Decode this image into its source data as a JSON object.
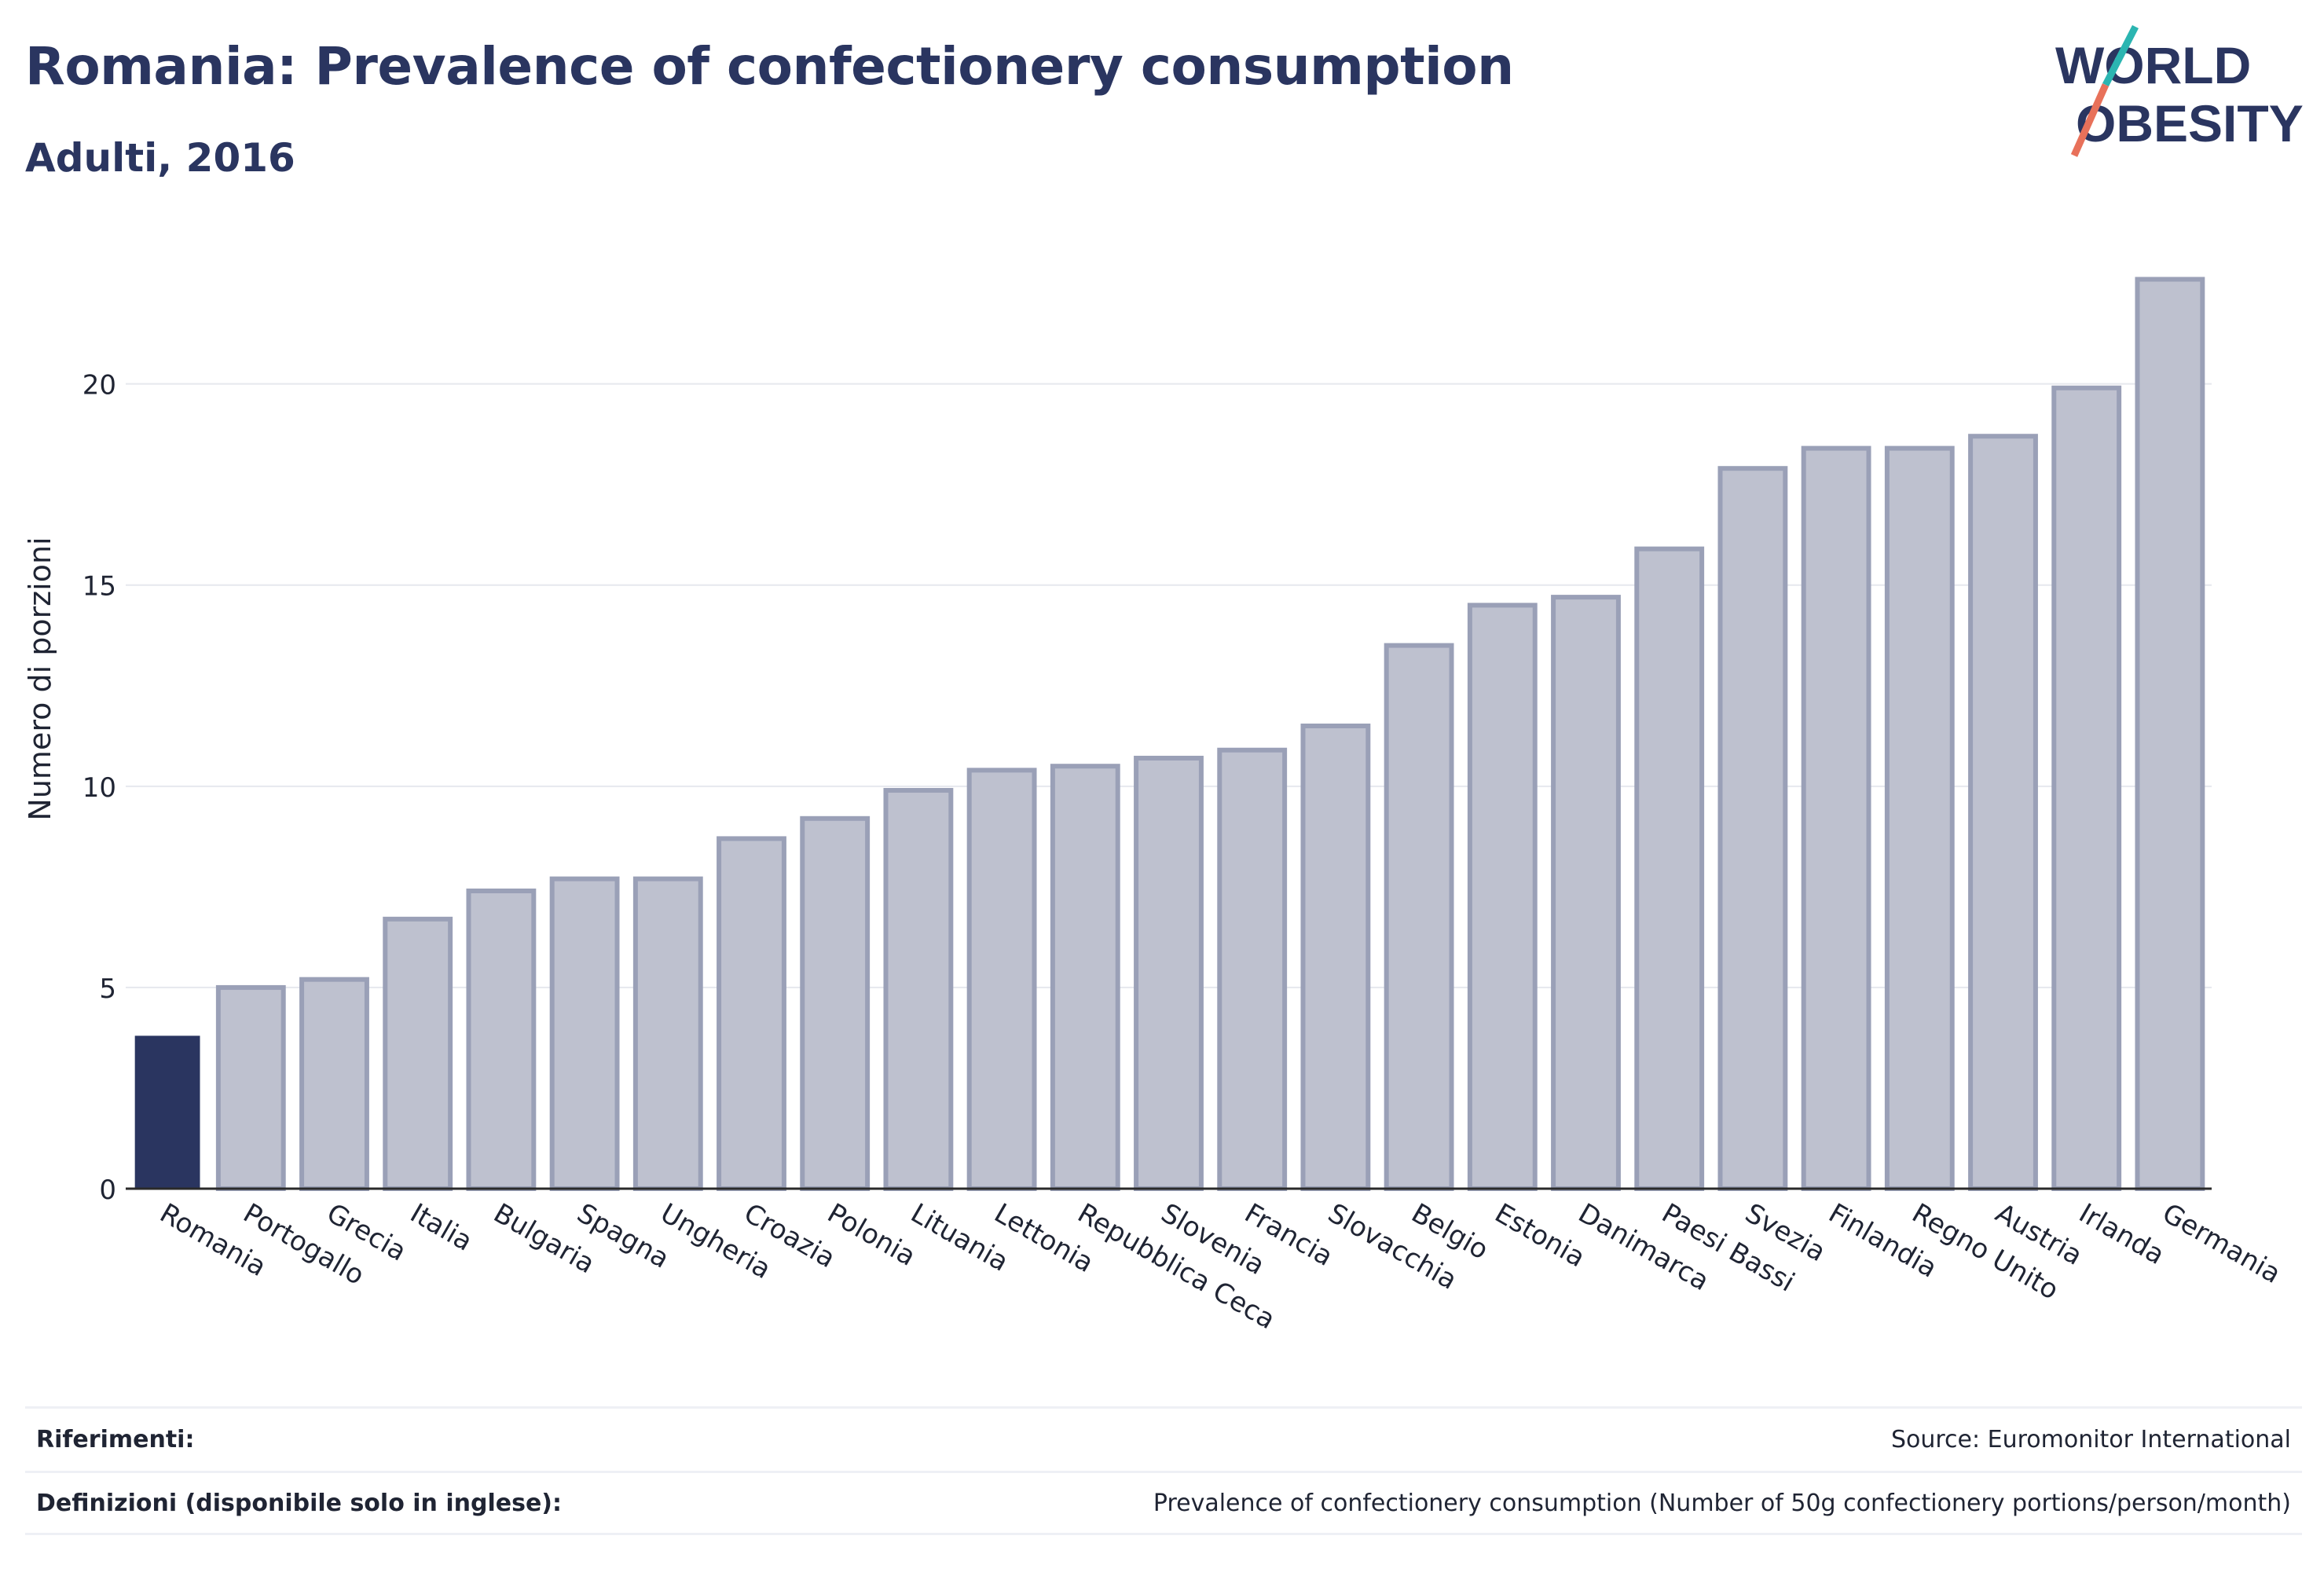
{
  "header": {
    "title": "Romania: Prevalence of confectionery consumption",
    "subtitle": "Adulti, 2016"
  },
  "logo": {
    "line1": "WORLD",
    "line2": "OBESITY"
  },
  "chart_data": {
    "type": "bar",
    "title": "Romania: Prevalence of confectionery consumption",
    "subtitle": "Adulti, 2016",
    "xlabel": "",
    "ylabel": "Numero di porzioni",
    "ylim": [
      0,
      23
    ],
    "yticks": [
      0,
      5,
      10,
      15,
      20
    ],
    "grid": true,
    "legend": "none",
    "highlight_color": "#2a3560",
    "bar_color": "#bec1cf",
    "bar_edge_color": "#9aa0b7",
    "highlight_category": "Romania",
    "categories": [
      "Romania",
      "Portogallo",
      "Grecia",
      "Italia",
      "Bulgaria",
      "Spagna",
      "Ungheria",
      "Croazia",
      "Polonia",
      "Lituania",
      "Lettonia",
      "Repubblica Ceca",
      "Slovenia",
      "Francia",
      "Slovacchia",
      "Belgio",
      "Estonia",
      "Danimarca",
      "Paesi Bassi",
      "Svezia",
      "Finlandia",
      "Regno Unito",
      "Austria",
      "Irlanda",
      "Germania"
    ],
    "values": [
      3.8,
      5.0,
      5.2,
      6.7,
      7.4,
      7.7,
      7.7,
      8.7,
      9.2,
      9.9,
      10.4,
      10.5,
      10.7,
      10.9,
      11.5,
      13.5,
      14.5,
      14.7,
      15.9,
      17.9,
      18.4,
      18.4,
      18.7,
      19.9,
      22.6
    ]
  },
  "footer": {
    "references_label": "Riferimenti:",
    "references_value": "Source: Euromonitor International",
    "definitions_label": "Definizioni (disponibile solo in inglese):",
    "definitions_value": "Prevalence of confectionery consumption (Number of 50g confectionery portions/person/month)"
  }
}
